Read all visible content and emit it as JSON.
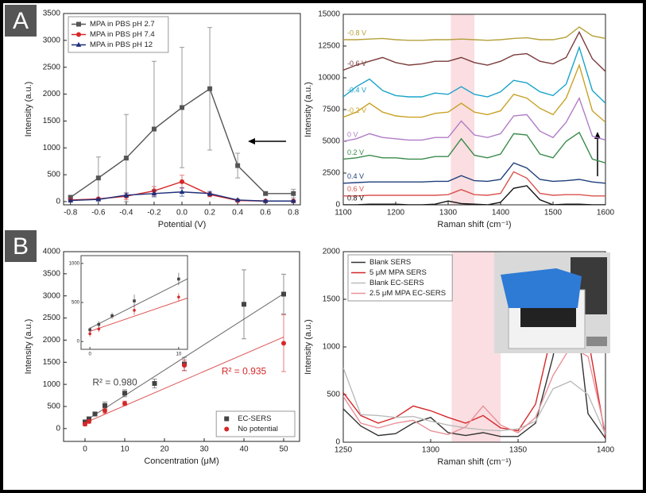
{
  "panels": [
    "A",
    "B"
  ],
  "chart_data": [
    {
      "type": "line",
      "x": [
        -0.8,
        -0.6,
        -0.4,
        -0.2,
        0,
        0.2,
        0.4,
        0.6,
        0.8
      ],
      "xlim": [
        -0.85,
        0.85
      ],
      "xticks": [
        -0.8,
        -0.6,
        -0.4,
        -0.2,
        {
          "value": 0,
          "label": "0.0"
        },
        0.2,
        0.4,
        0.6,
        0.8
      ],
      "ylim": [
        -60,
        3500
      ],
      "yticks": [
        0,
        500,
        1000,
        1500,
        2000,
        2500,
        3000,
        3500
      ],
      "xlabel": "Potential (V)",
      "ylabel": "Intensity (a.u.)",
      "legend": "upper left",
      "series": [
        {
          "name": "MPA in PBS pH 2.7",
          "color": "#555555",
          "marker": "square",
          "values": [
            80,
            440,
            810,
            1350,
            1750,
            2100,
            670,
            150,
            150
          ],
          "errors": [
            30,
            390,
            810,
            1260,
            1120,
            1140,
            230,
            20,
            80
          ]
        },
        {
          "name": "MPA in PBS pH 7.4",
          "color": "#d62728",
          "marker": "circle",
          "values": [
            30,
            50,
            100,
            200,
            370,
            130,
            20,
            10,
            10
          ],
          "errors": [
            10,
            20,
            60,
            80,
            120,
            40,
            10,
            5,
            5
          ]
        },
        {
          "name": "MPA in PBS pH 12",
          "color": "#1f2f7a",
          "marker": "triangle",
          "values": [
            20,
            40,
            120,
            150,
            180,
            150,
            30,
            10,
            10
          ],
          "errors": [
            10,
            15,
            40,
            60,
            80,
            40,
            10,
            5,
            5
          ]
        }
      ]
    },
    {
      "type": "line",
      "x": [
        1100,
        1125,
        1150,
        1175,
        1200,
        1225,
        1250,
        1275,
        1300,
        1325,
        1350,
        1375,
        1400,
        1425,
        1450,
        1475,
        1500,
        1525,
        1550,
        1575,
        1600
      ],
      "xlim": [
        1100,
        1600
      ],
      "xticks": [
        1100,
        1200,
        1300,
        1400,
        1500,
        1600
      ],
      "ylim": [
        0,
        15000
      ],
      "yticks": [
        0,
        2500,
        5000,
        7500,
        10000,
        12500,
        15000
      ],
      "xlabel": "Raman shift (cm⁻¹)",
      "ylabel": "Intensity (a.u.)",
      "labels": "inline",
      "highlight": [
        1305,
        1350
      ],
      "series": [
        {
          "name": "-0.8 V",
          "color": "#b5a13a",
          "values": [
            13000,
            13000,
            13050,
            13100,
            13000,
            12950,
            12950,
            13000,
            13000,
            13050,
            13000,
            12950,
            13000,
            13100,
            13150,
            13000,
            13000,
            13200,
            14000,
            13300,
            13100
          ]
        },
        {
          "name": "-0.6 V",
          "color": "#7a3b3b",
          "values": [
            10600,
            11000,
            11300,
            11600,
            11200,
            11000,
            11100,
            11300,
            11300,
            11600,
            11200,
            11000,
            11300,
            11800,
            11900,
            11300,
            11100,
            11600,
            13600,
            11500,
            10500
          ]
        },
        {
          "name": "-0.4 V",
          "color": "#1aa3c9",
          "values": [
            8500,
            9300,
            9900,
            9000,
            8600,
            8500,
            8500,
            8800,
            8700,
            9300,
            8700,
            8500,
            8900,
            9800,
            9600,
            8900,
            8600,
            9500,
            12400,
            9000,
            8000
          ]
        },
        {
          "name": "-0.2 V",
          "color": "#c9a227",
          "values": [
            6900,
            7300,
            8000,
            7300,
            7000,
            6900,
            6900,
            7200,
            7300,
            8000,
            7300,
            7100,
            7400,
            8700,
            8400,
            7600,
            7100,
            8400,
            11000,
            7400,
            6500
          ]
        },
        {
          "name": "0 V",
          "color": "#b07cc6",
          "values": [
            5000,
            5200,
            5600,
            5300,
            5200,
            5100,
            5100,
            5300,
            5300,
            6600,
            5500,
            5300,
            5600,
            7000,
            7100,
            5800,
            5300,
            6500,
            8400,
            5400,
            5100
          ]
        },
        {
          "name": "0.2 V",
          "color": "#3a8a4a",
          "values": [
            3600,
            3700,
            3900,
            3700,
            3700,
            3600,
            3600,
            3800,
            3800,
            5200,
            3900,
            3700,
            4000,
            5600,
            5500,
            4000,
            3700,
            5000,
            5700,
            3600,
            3300
          ]
        },
        {
          "name": "0.4 V",
          "color": "#1f3f7a",
          "values": [
            1700,
            1750,
            1800,
            1800,
            1800,
            1800,
            1800,
            1850,
            1850,
            2300,
            1900,
            1850,
            2000,
            3300,
            2900,
            2000,
            1850,
            1900,
            2000,
            1800,
            1700
          ]
        },
        {
          "name": "0.6 V",
          "color": "#d9534f",
          "values": [
            700,
            700,
            750,
            750,
            750,
            750,
            750,
            750,
            800,
            1200,
            800,
            750,
            900,
            2600,
            2100,
            900,
            750,
            800,
            800,
            700,
            700
          ]
        },
        {
          "name": "0.8 V",
          "color": "#111111",
          "values": [
            0,
            0,
            50,
            50,
            50,
            0,
            0,
            50,
            300,
            100,
            50,
            0,
            200,
            1300,
            1500,
            400,
            0,
            50,
            50,
            0,
            0
          ]
        }
      ]
    },
    {
      "type": "scatter",
      "xlim": [
        -5.4,
        54
      ],
      "xticks": [
        0,
        10,
        20,
        30,
        40,
        50
      ],
      "ylim": [
        -290,
        4000
      ],
      "yticks": [
        0,
        500,
        1000,
        1500,
        2000,
        2500,
        3000,
        3500,
        4000
      ],
      "xlabel": "Concentration (μM)",
      "ylabel": "Intensity (a.u.)",
      "legend": "lower right",
      "series": [
        {
          "name": "EC-SERS",
          "color": "#444444",
          "marker": "square",
          "x": [
            0,
            1,
            2.5,
            5,
            10,
            17.5,
            25,
            40,
            50
          ],
          "values": [
            150,
            220,
            330,
            520,
            800,
            1020,
            1460,
            2810,
            3040
          ],
          "errors": [
            30,
            40,
            40,
            80,
            80,
            100,
            150,
            780,
            450
          ],
          "fit": {
            "x": [
              0,
              50
            ],
            "y": [
              170,
              3050
            ],
            "label": "R² = 0.980"
          }
        },
        {
          "name": "No potential",
          "color": "#d62728",
          "marker": "circle",
          "x": [
            0,
            1,
            5,
            10,
            25,
            50
          ],
          "values": [
            100,
            160,
            400,
            570,
            1430,
            1930
          ],
          "errors": [
            40,
            40,
            60,
            50,
            120,
            640
          ],
          "fit": {
            "x": [
              0,
              50
            ],
            "y": [
              130,
              2070
            ],
            "label": "R² = 0.935"
          }
        }
      ],
      "inset": {
        "xlim": [
          -1,
          11
        ],
        "ylim": [
          -100,
          1100
        ],
        "xticks": [
          0,
          10
        ],
        "yticks": [
          0,
          500,
          1000
        ]
      }
    },
    {
      "type": "line",
      "x": [
        1250,
        1260,
        1270,
        1280,
        1290,
        1300,
        1310,
        1320,
        1330,
        1340,
        1350,
        1360,
        1370,
        1380,
        1390,
        1400
      ],
      "xlim": [
        1250,
        1400
      ],
      "xticks": [
        1250,
        1300,
        1350,
        1400
      ],
      "ylim": [
        0,
        2000
      ],
      "yticks": [
        0,
        500,
        1000,
        1500,
        2000
      ],
      "xlabel": "Raman shift (cm⁻¹)",
      "ylabel": "Intensity (a.u.)",
      "legend": "upper left",
      "highlight": [
        1312,
        1340
      ],
      "series": [
        {
          "name": "Blank SERS",
          "color": "#333333",
          "values": [
            350,
            170,
            70,
            90,
            200,
            260,
            100,
            70,
            100,
            60,
            60,
            200,
            900,
            1900,
            300,
            40
          ]
        },
        {
          "name": "5 μM MPA SERS",
          "color": "#d62728",
          "values": [
            520,
            280,
            200,
            260,
            380,
            330,
            260,
            200,
            280,
            150,
            120,
            400,
            1200,
            1900,
            1100,
            50
          ]
        },
        {
          "name": "Blank EC-SERS",
          "color": "#bbbbbb",
          "values": [
            780,
            290,
            280,
            260,
            270,
            220,
            180,
            150,
            130,
            120,
            140,
            220,
            560,
            640,
            500,
            80
          ]
        },
        {
          "name": "2.5 μM MPA EC-SERS",
          "color": "#e8919a",
          "values": [
            480,
            200,
            150,
            200,
            230,
            120,
            80,
            160,
            380,
            180,
            100,
            260,
            700,
            1000,
            900,
            100
          ]
        }
      ]
    }
  ]
}
